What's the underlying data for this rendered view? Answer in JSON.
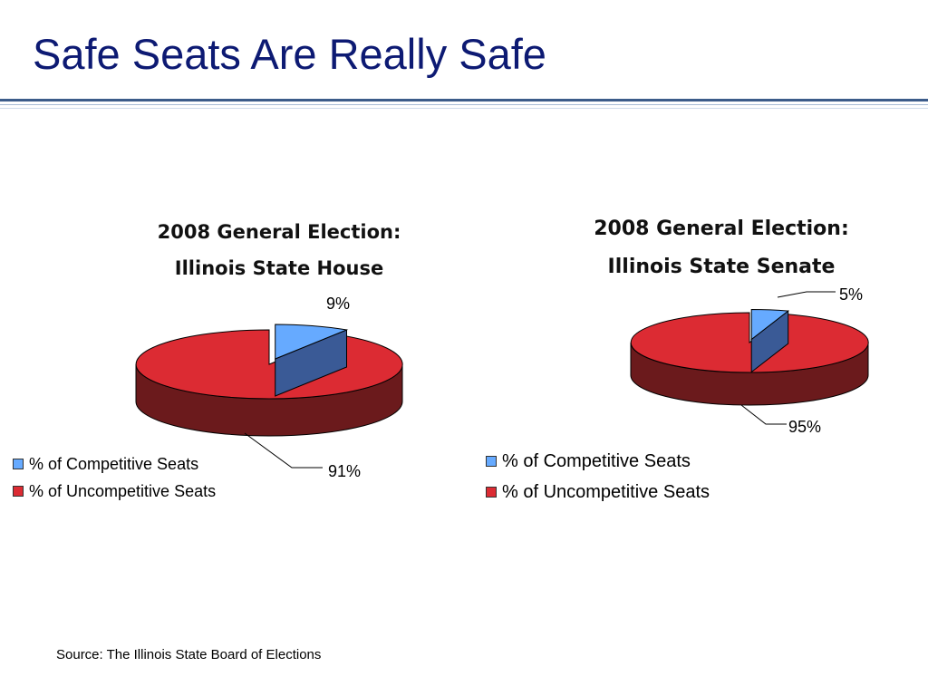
{
  "slide": {
    "title": "Safe Seats Are Really Safe",
    "source": "Source: The Illinois State Board of Elections"
  },
  "colors": {
    "title": "#0d1a73",
    "competitive_top": "#66aaff",
    "competitive_side": "#3a5a96",
    "uncompetitive_top": "#dc2b33",
    "uncompetitive_side": "#6b1a1c"
  },
  "chart_data": [
    {
      "type": "pie",
      "title_lines": [
        "2008 General Election:",
        "Illinois State House"
      ],
      "categories": [
        "% of Competitive Seats",
        "% of Uncompetitive Seats"
      ],
      "values": [
        9,
        91
      ],
      "data_labels": [
        "9%",
        "91%"
      ],
      "legend_position": "bottom-left"
    },
    {
      "type": "pie",
      "title_lines": [
        "2008 General Election:",
        "Illinois State Senate"
      ],
      "categories": [
        "% of Competitive Seats",
        "% of Uncompetitive Seats"
      ],
      "values": [
        5,
        95
      ],
      "data_labels": [
        "5%",
        "95%"
      ],
      "legend_position": "bottom-left"
    }
  ]
}
